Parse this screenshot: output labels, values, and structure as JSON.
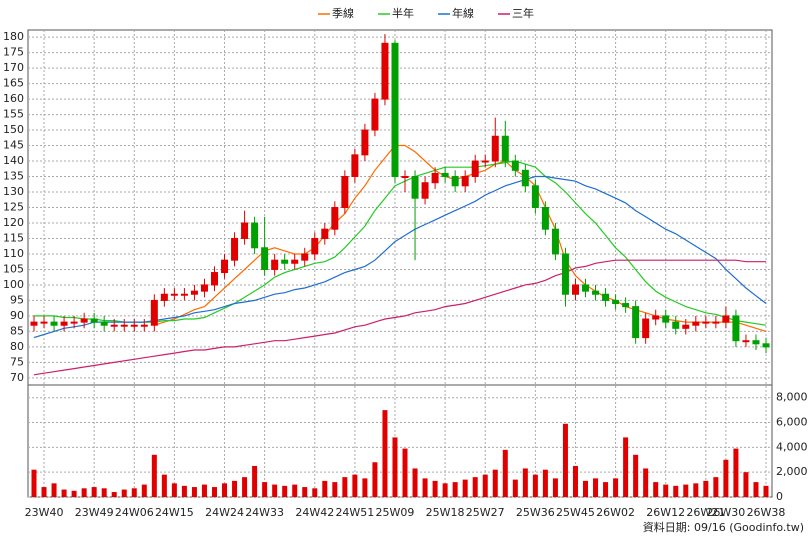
{
  "chart_data": {
    "type": "candlestick",
    "legend": "top",
    "grid": true,
    "up_color": "#e00000",
    "down_color": "#00a000",
    "footer": "資料日期: 09/16  (Goodinfo.tw)",
    "categories": [
      null,
      "23W40",
      null,
      null,
      null,
      null,
      "23W49",
      null,
      null,
      null,
      "24W06",
      null,
      null,
      null,
      "24W15",
      null,
      null,
      null,
      null,
      "24W24",
      null,
      null,
      null,
      "24W33",
      null,
      null,
      null,
      null,
      "24W42",
      null,
      null,
      null,
      "24W51",
      null,
      null,
      null,
      "25W09",
      null,
      null,
      null,
      null,
      "25W18",
      null,
      null,
      null,
      "25W27",
      null,
      null,
      null,
      null,
      "25W36",
      null,
      null,
      null,
      "25W45",
      null,
      null,
      null,
      "26W02",
      null,
      null,
      null,
      null,
      "26W12",
      null,
      null,
      null,
      "26W21",
      null,
      "26W30",
      null,
      null,
      null,
      "26W38"
    ],
    "open": [
      87,
      88,
      88,
      87,
      88,
      88,
      89,
      88,
      87,
      87,
      87,
      87,
      87,
      95,
      97,
      97,
      97,
      98,
      100,
      104,
      108,
      115,
      120,
      112,
      105,
      108,
      107,
      108,
      110,
      115,
      118,
      125,
      135,
      142,
      150,
      160,
      178,
      135,
      135,
      128,
      133,
      136,
      135,
      132,
      135,
      140,
      140,
      148,
      140,
      137,
      132,
      125,
      118,
      110,
      97,
      100,
      98,
      97,
      95,
      94,
      93,
      83,
      89,
      90,
      88,
      86,
      87,
      88,
      88,
      88,
      90,
      82,
      82,
      81
    ],
    "high": [
      90,
      90,
      90,
      90,
      90,
      91,
      91,
      90,
      89,
      89,
      89,
      89,
      97,
      99,
      99,
      99,
      100,
      102,
      106,
      110,
      117,
      124,
      122,
      122,
      110,
      110,
      110,
      112,
      117,
      120,
      127,
      137,
      144,
      152,
      162,
      181,
      179,
      137,
      137,
      135,
      138,
      138,
      137,
      137,
      142,
      142,
      154,
      153,
      142,
      139,
      134,
      127,
      120,
      112,
      102,
      102,
      100,
      99,
      97,
      96,
      95,
      91,
      92,
      92,
      90,
      89,
      90,
      90,
      90,
      93,
      92,
      84,
      84,
      83
    ],
    "low": [
      85,
      86,
      85,
      85,
      86,
      86,
      86,
      85,
      85,
      85,
      85,
      85,
      85,
      93,
      95,
      95,
      95,
      96,
      98,
      102,
      106,
      113,
      110,
      103,
      103,
      105,
      105,
      106,
      108,
      113,
      116,
      123,
      133,
      140,
      148,
      158,
      133,
      130,
      108,
      126,
      131,
      133,
      130,
      130,
      133,
      138,
      138,
      138,
      135,
      130,
      123,
      116,
      108,
      93,
      95,
      96,
      95,
      93,
      92,
      91,
      81,
      81,
      87,
      86,
      84,
      84,
      85,
      86,
      86,
      86,
      80,
      80,
      79,
      78
    ],
    "close": [
      88,
      88,
      87,
      88,
      88,
      89,
      88,
      87,
      87,
      87,
      87,
      87,
      95,
      97,
      97,
      97,
      98,
      100,
      104,
      108,
      115,
      120,
      112,
      105,
      108,
      107,
      108,
      110,
      115,
      118,
      125,
      135,
      142,
      150,
      160,
      178,
      135,
      135,
      128,
      133,
      136,
      135,
      132,
      135,
      140,
      140,
      148,
      140,
      137,
      132,
      125,
      118,
      110,
      97,
      100,
      98,
      97,
      95,
      94,
      93,
      83,
      89,
      90,
      88,
      86,
      87,
      88,
      88,
      88,
      90,
      82,
      82,
      81,
      80
    ],
    "series": [
      {
        "name": "季線",
        "color": "#ff6a00",
        "values": [
          null,
          null,
          null,
          null,
          null,
          null,
          null,
          null,
          null,
          null,
          null,
          null,
          87,
          88,
          89,
          90.5,
          92,
          93,
          96,
          99,
          102,
          105,
          108,
          111,
          112,
          111,
          110,
          110,
          112,
          116,
          120,
          123,
          128,
          132,
          137,
          141,
          145,
          145,
          143,
          140,
          137,
          135,
          134,
          135,
          136,
          137,
          139,
          140,
          137,
          135,
          132,
          125,
          118,
          108,
          103,
          100,
          98,
          96,
          95,
          93,
          92,
          91,
          90,
          89,
          88.5,
          88,
          88,
          88,
          88,
          88,
          88,
          87,
          86,
          85
        ]
      },
      {
        "name": "半年",
        "color": "#22cc22",
        "values": [
          90,
          90,
          90,
          89.5,
          89.5,
          89,
          89,
          88.5,
          88.5,
          88,
          88,
          88,
          88,
          88.5,
          88.5,
          89,
          89,
          89.5,
          91,
          92.5,
          94,
          96,
          98,
          100,
          102.5,
          104,
          105,
          106,
          107,
          107.5,
          109,
          112,
          115.5,
          119,
          124,
          128,
          132,
          133.5,
          135,
          136,
          137,
          138,
          138,
          138,
          138,
          138.5,
          139,
          139.5,
          140,
          139,
          138,
          135,
          133,
          130,
          126.5,
          123,
          120,
          116,
          112,
          109,
          105,
          101,
          98,
          96,
          94.5,
          93,
          92,
          91,
          90.5,
          89.5,
          88.5,
          88,
          87.5,
          87
        ]
      },
      {
        "name": "年線",
        "color": "#1e6fd0",
        "values": [
          83,
          84,
          85,
          86,
          86.5,
          87,
          88,
          88,
          88,
          88,
          88,
          88,
          88.5,
          89,
          89.5,
          90,
          91,
          91.5,
          92,
          93,
          94,
          94.5,
          95,
          96,
          97,
          97.5,
          98.5,
          99,
          100,
          101,
          102.5,
          104,
          105,
          106,
          108,
          111,
          114,
          116,
          118,
          119.5,
          121,
          122.5,
          124,
          125.5,
          127,
          129,
          130.5,
          132,
          133,
          134,
          135,
          135,
          134.5,
          134,
          133.5,
          132,
          131,
          129.5,
          128,
          126.5,
          124,
          122,
          120,
          118,
          116.5,
          114.5,
          112.5,
          110.5,
          108.5,
          105,
          102,
          99,
          96.5,
          94
        ]
      },
      {
        "name": "三年",
        "color": "#cc1f6a",
        "values": [
          71,
          71.5,
          72,
          72.5,
          73,
          73.5,
          74,
          74.5,
          75,
          75.5,
          76,
          76.5,
          77,
          77.5,
          78,
          78.5,
          79,
          79,
          79.5,
          80,
          80,
          80.5,
          81,
          81.5,
          82,
          82,
          82.5,
          83,
          83.5,
          84,
          84.5,
          85.5,
          86.5,
          87,
          88,
          89,
          89.5,
          90,
          91,
          91.5,
          92,
          93,
          93.5,
          94,
          95,
          96,
          97,
          98,
          99,
          100,
          100.5,
          101.5,
          103,
          104,
          105.5,
          106,
          107,
          107.5,
          108,
          108,
          108,
          108,
          108,
          108,
          108,
          108,
          108,
          108,
          108,
          108,
          108,
          107.5,
          107.5,
          107.5
        ]
      }
    ],
    "ylim": [
      67.7,
      182.3
    ],
    "yticks": [
      70,
      75,
      80,
      85,
      90,
      95,
      100,
      105,
      110,
      115,
      120,
      125,
      130,
      135,
      140,
      145,
      150,
      155,
      160,
      165,
      170,
      175,
      180
    ],
    "volume": {
      "color": "#e00000",
      "values": [
        2200,
        800,
        1100,
        600,
        500,
        700,
        800,
        700,
        400,
        600,
        700,
        1000,
        3400,
        1800,
        1100,
        900,
        800,
        1000,
        800,
        1100,
        1300,
        1600,
        2500,
        1200,
        1000,
        900,
        1000,
        800,
        700,
        1300,
        1200,
        1600,
        1800,
        1500,
        2800,
        7000,
        4800,
        3900,
        2300,
        1500,
        1300,
        1100,
        1200,
        1400,
        1600,
        1800,
        2200,
        3800,
        1400,
        2300,
        1800,
        2200,
        1500,
        5900,
        2500,
        1300,
        1500,
        1200,
        1500,
        4800,
        3400,
        2300,
        1200,
        1000,
        900,
        1000,
        1100,
        1300,
        1600,
        3000,
        3900,
        2000,
        1200,
        900
      ],
      "ylim": [
        0,
        8700
      ],
      "yticks": [
        0,
        {
          "value": 2000,
          "label": "2,000"
        },
        {
          "value": 4000,
          "label": "4,000"
        },
        {
          "value": 6000,
          "label": "6,000"
        },
        {
          "value": 8000,
          "label": "8,000"
        }
      ]
    }
  }
}
